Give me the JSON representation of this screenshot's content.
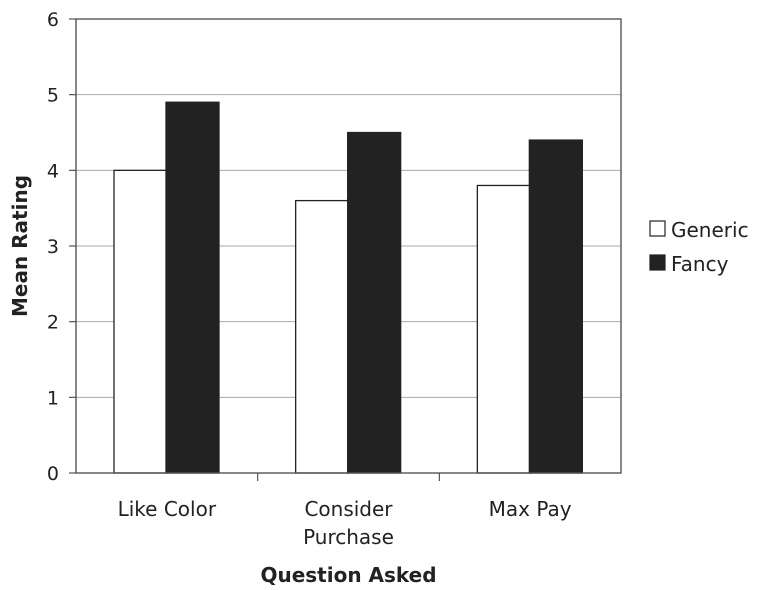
{
  "chart_data": {
    "type": "bar",
    "categories": [
      [
        "Like Color"
      ],
      [
        "Consider",
        "Purchase"
      ],
      [
        "Max Pay"
      ]
    ],
    "series": [
      {
        "name": "Generic",
        "values": [
          4.0,
          3.6,
          3.8
        ],
        "color": "#ffffff"
      },
      {
        "name": "Fancy",
        "values": [
          4.9,
          4.5,
          4.4
        ],
        "color": "#222222"
      }
    ],
    "xlabel": "Question Asked",
    "ylabel": "Mean Rating",
    "ylim": [
      0,
      6
    ],
    "yticks": [
      0,
      1,
      2,
      3,
      4,
      5,
      6
    ],
    "grid": "horizontal",
    "legend_position": "right"
  }
}
